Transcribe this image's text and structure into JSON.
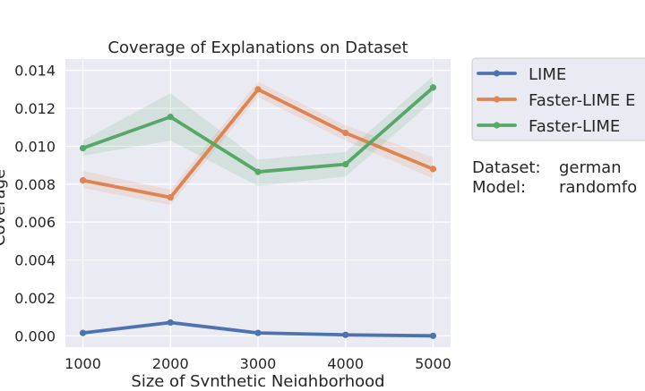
{
  "chart_data": {
    "type": "line",
    "title": "Coverage of Explanations on Dataset",
    "xlabel": "Size of Synthetic Neighborhood",
    "ylabel": "Coverage",
    "x": [
      1000,
      2000,
      3000,
      4000,
      5000
    ],
    "xlim": [
      800,
      5200
    ],
    "ylim": [
      -0.0006,
      0.0146
    ],
    "xticks": [
      "1000",
      "2000",
      "3000",
      "4000",
      "5000"
    ],
    "yticks": [
      "0.000",
      "0.002",
      "0.004",
      "0.006",
      "0.008",
      "0.010",
      "0.012",
      "0.014"
    ],
    "grid": true,
    "legend_position": "outside-right",
    "series": [
      {
        "name": "LIME",
        "color": "#4c72b0",
        "values": [
          0.00015,
          0.0007,
          0.00015,
          5e-05,
          0.0
        ],
        "lower": [
          0.00015,
          0.0007,
          0.00015,
          5e-05,
          0.0
        ],
        "upper": [
          0.00015,
          0.0007,
          0.00015,
          5e-05,
          0.0
        ]
      },
      {
        "name": "Faster-LIME E",
        "color": "#dd8452",
        "values": [
          0.0082,
          0.0073,
          0.013,
          0.0107,
          0.0088
        ],
        "lower": [
          0.0078,
          0.0069,
          0.0126,
          0.0103,
          0.0083
        ],
        "upper": [
          0.0087,
          0.0077,
          0.0134,
          0.0111,
          0.0094
        ]
      },
      {
        "name": "Faster-LIME",
        "color": "#55a868",
        "values": [
          0.0099,
          0.01155,
          0.00865,
          0.00905,
          0.0131
        ],
        "lower": [
          0.0095,
          0.0103,
          0.0079,
          0.0084,
          0.0124
        ],
        "upper": [
          0.0103,
          0.0128,
          0.0093,
          0.0097,
          0.0137
        ]
      }
    ]
  },
  "info": {
    "dataset_label": "Dataset:",
    "dataset_value": "german",
    "model_label": "Model:",
    "model_value": "randomfo"
  }
}
